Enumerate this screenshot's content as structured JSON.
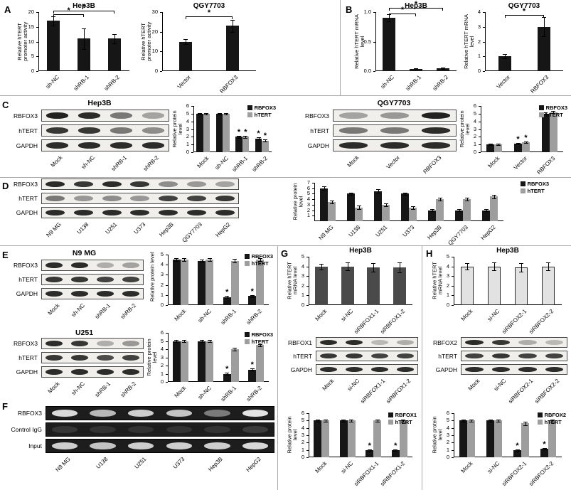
{
  "panels": {
    "A": "A",
    "B": "B",
    "C": "C",
    "D": "D",
    "E": "E",
    "F": "F",
    "G": "G",
    "H": "H"
  },
  "section_titles": {
    "c_left": "Hep3B",
    "c_right": "QGY7703",
    "e_top": "N9 MG",
    "e_bottom": "U251"
  },
  "colors": {
    "bar_dark": "#161616",
    "bar_gray": "#9e9e9e",
    "gel_bg": "#1d1d1d",
    "blot_bg": "#f1efec"
  },
  "chart_data": [
    {
      "id": "a_hep3b",
      "type": "bar",
      "title": "Hep3B",
      "ylabel": "Relative hTERT promoter activity",
      "categories": [
        "sh-NC",
        "shRB-1",
        "shRB-2"
      ],
      "values": [
        17,
        11,
        11
      ],
      "errors": [
        1.5,
        3.5,
        1.5
      ],
      "ylim": [
        0,
        20
      ],
      "yticks": [
        0,
        5,
        10,
        15,
        20
      ],
      "sig": [
        {
          "a": 0,
          "b": 1,
          "y": 19.2,
          "label": "*"
        },
        {
          "a": 0,
          "b": 2,
          "y": 20.6,
          "label": "*"
        }
      ]
    },
    {
      "id": "a_qgy7703",
      "type": "bar",
      "title": "QGY7703",
      "ylabel": "Relative hTERT promoter activity",
      "categories": [
        "Vector",
        "RBFOX3"
      ],
      "values": [
        15,
        23
      ],
      "errors": [
        1.2,
        3
      ],
      "ylim": [
        0,
        30
      ],
      "yticks": [
        0,
        10,
        20,
        30
      ],
      "sig": [
        {
          "a": 0,
          "b": 1,
          "y": 28,
          "label": "*"
        }
      ]
    },
    {
      "id": "b_hep3b",
      "type": "bar",
      "title": "Hep3B",
      "ylabel": "Relative hTERT mRNA level",
      "categories": [
        "sh-NC",
        "shRB-1",
        "shRB-2"
      ],
      "values": [
        0.9,
        0.04,
        0.05
      ],
      "errors": [
        0.06,
        0.01,
        0.01
      ],
      "ylim": [
        0,
        1
      ],
      "yticks": [
        0,
        0.5,
        1
      ],
      "ytick_labels": [
        "0.0",
        "0.5",
        "1.0"
      ],
      "sig": [
        {
          "a": 0,
          "b": 1,
          "y": 0.98,
          "label": "*"
        },
        {
          "a": 0,
          "b": 2,
          "y": 1.07,
          "label": "*"
        }
      ]
    },
    {
      "id": "b_qgy7703",
      "type": "bar",
      "title": "QGY7703",
      "ylabel": "Relative hTERT mRNA level",
      "categories": [
        "Vector",
        "RBFOX3"
      ],
      "values": [
        1,
        3
      ],
      "errors": [
        0.15,
        0.65
      ],
      "ylim": [
        0,
        4
      ],
      "yticks": [
        0,
        1,
        2,
        3,
        4
      ],
      "sig": [
        {
          "a": 0,
          "b": 1,
          "y": 3.8,
          "label": "*"
        }
      ]
    },
    {
      "id": "c_hep3b_protein",
      "type": "bar",
      "ylabel": "Relative protein level",
      "categories": [
        "Mock",
        "sh-NC",
        "shRB-1",
        "shRB-2"
      ],
      "series": [
        {
          "name": "RBFOX3",
          "color": "#161616",
          "values": [
            5,
            5,
            2,
            1.8
          ],
          "errors": [
            0.12,
            0.12,
            0.15,
            0.15
          ]
        },
        {
          "name": "hTERT",
          "color": "#9e9e9e",
          "values": [
            5,
            5,
            2,
            1.5
          ],
          "errors": [
            0.12,
            0.12,
            0.15,
            0.15
          ]
        }
      ],
      "ylim": [
        0,
        6
      ],
      "yticks": [
        0,
        1,
        2,
        3,
        4,
        5,
        6
      ],
      "legend": "tr",
      "stars": [
        {
          "s": 0,
          "c": 2
        },
        {
          "s": 1,
          "c": 2
        },
        {
          "s": 0,
          "c": 3
        },
        {
          "s": 1,
          "c": 3
        }
      ]
    },
    {
      "id": "c_qgy7703_protein",
      "type": "bar",
      "ylabel": "Relative protein level",
      "categories": [
        "Mock",
        "Vector",
        "RBFOX3"
      ],
      "series": [
        {
          "name": "RBFOX3",
          "color": "#161616",
          "values": [
            1,
            1.1,
            5
          ],
          "errors": [
            0.1,
            0.12,
            0.15
          ]
        },
        {
          "name": "hTERT",
          "color": "#9e9e9e",
          "values": [
            1,
            1.3,
            5.2
          ],
          "errors": [
            0.1,
            0.12,
            0.15
          ]
        }
      ],
      "ylim": [
        0,
        6
      ],
      "yticks": [
        0,
        1,
        2,
        3,
        4,
        5,
        6
      ],
      "legend": "tr",
      "stars": [
        {
          "s": 0,
          "c": 1
        },
        {
          "s": 1,
          "c": 1
        }
      ]
    },
    {
      "id": "d_protein",
      "type": "bar",
      "ylabel": "Relative protein level",
      "categories": [
        "N9 MG",
        "U138",
        "U251",
        "U373",
        "Hep3B",
        "QGY7703",
        "HepG2"
      ],
      "series": [
        {
          "name": "RBFOX3",
          "color": "#161616",
          "values": [
            6,
            5,
            5.5,
            5,
            2,
            2,
            2
          ],
          "errors": [
            0.3,
            0.25,
            0.3,
            0.25,
            0.2,
            0.2,
            0.2
          ]
        },
        {
          "name": "hTERT",
          "color": "#9e9e9e",
          "values": [
            3.5,
            2.5,
            3,
            2.5,
            4,
            4,
            4.5
          ],
          "errors": [
            0.3,
            0.3,
            0.3,
            0.25,
            0.3,
            0.3,
            0.3
          ]
        }
      ],
      "ylim": [
        0,
        7
      ],
      "yticks": [
        1,
        2,
        3,
        4,
        5,
        6,
        7
      ],
      "legend": "r"
    },
    {
      "id": "e_n9mg_protein",
      "type": "bar",
      "ylabel": "Relative protein level",
      "categories": [
        "Mock",
        "sh-NC",
        "shRB-1",
        "shRB-2"
      ],
      "series": [
        {
          "name": "RBFOX3",
          "color": "#161616",
          "values": [
            4.5,
            4.4,
            0.8,
            0.9
          ],
          "errors": [
            0.12,
            0.12,
            0.1,
            0.1
          ]
        },
        {
          "name": "hTERT",
          "color": "#9e9e9e",
          "values": [
            4.5,
            4.5,
            4.4,
            4.5
          ],
          "errors": [
            0.12,
            0.12,
            0.15,
            0.12
          ]
        }
      ],
      "ylim": [
        0,
        5
      ],
      "yticks": [
        0,
        1,
        2,
        3,
        4,
        5
      ],
      "legend": "tr",
      "stars": [
        {
          "s": 0,
          "c": 2
        },
        {
          "s": 0,
          "c": 3
        }
      ]
    },
    {
      "id": "e_u251_protein",
      "type": "bar",
      "ylabel": "Relative protein level",
      "categories": [
        "Mock",
        "sh-NC",
        "shRB-1",
        "shRB-2"
      ],
      "series": [
        {
          "name": "RBFOX3",
          "color": "#161616",
          "values": [
            5,
            5,
            1,
            1.5
          ],
          "errors": [
            0.15,
            0.12,
            0.1,
            0.12
          ]
        },
        {
          "name": "hTERT",
          "color": "#9e9e9e",
          "values": [
            5,
            5,
            4,
            4.5
          ],
          "errors": [
            0.12,
            0.12,
            0.2,
            0.15
          ]
        }
      ],
      "ylim": [
        0,
        6
      ],
      "yticks": [
        0,
        1,
        2,
        3,
        4,
        5,
        6
      ],
      "legend": "tr",
      "stars": [
        {
          "s": 0,
          "c": 2
        },
        {
          "s": 0,
          "c": 3
        }
      ]
    },
    {
      "id": "g_mrna",
      "type": "bar",
      "title": "Hep3B",
      "ylabel": "Relative hTERT mRNA level",
      "bar_color": "#4a4a4a",
      "categories": [
        "Mock",
        "si-NC",
        "siRBFOX1-1",
        "siRBFOX1-2"
      ],
      "values": [
        4,
        4,
        3.9,
        3.9
      ],
      "errors": [
        0.3,
        0.4,
        0.45,
        0.5
      ],
      "ylim": [
        0,
        5
      ],
      "yticks": [
        0,
        1,
        2,
        3,
        4,
        5
      ]
    },
    {
      "id": "g_protein",
      "type": "bar",
      "ylabel": "Relative protein level",
      "categories": [
        "Mock",
        "si-NC",
        "siRBFOX1-1",
        "siRBFOX1-2"
      ],
      "series": [
        {
          "name": "RBFOX1",
          "color": "#161616",
          "values": [
            5,
            5,
            1,
            1
          ],
          "errors": [
            0.12,
            0.12,
            0.1,
            0.1
          ]
        },
        {
          "name": "hTERT",
          "color": "#9e9e9e",
          "values": [
            5,
            5,
            5,
            5
          ],
          "errors": [
            0.12,
            0.12,
            0.15,
            0.15
          ]
        }
      ],
      "ylim": [
        0,
        6
      ],
      "yticks": [
        0,
        1,
        2,
        3,
        4,
        5,
        6
      ],
      "legend": "tr",
      "stars": [
        {
          "s": 0,
          "c": 2
        },
        {
          "s": 0,
          "c": 3
        }
      ]
    },
    {
      "id": "h_mrna",
      "type": "bar",
      "title": "Hep3B",
      "ylabel": "Relative hTERT mRNA level",
      "bar_color": "#e2e2e2",
      "bar_border": "#2b2b2b",
      "categories": [
        "Mock",
        "si-NC",
        "siRBFOX2-1",
        "siRBFOX2-2"
      ],
      "values": [
        4,
        4,
        3.9,
        4
      ],
      "errors": [
        0.35,
        0.4,
        0.45,
        0.4
      ],
      "ylim": [
        0,
        5
      ],
      "yticks": [
        0,
        1,
        2,
        3,
        4,
        5
      ]
    },
    {
      "id": "h_protein",
      "type": "bar",
      "ylabel": "Relative protein level",
      "categories": [
        "Mock",
        "si-NC",
        "siRBFOX2-1",
        "siRBFOX2-2"
      ],
      "series": [
        {
          "name": "RBFOX2",
          "color": "#161616",
          "values": [
            5,
            5,
            1,
            1.2
          ],
          "errors": [
            0.12,
            0.12,
            0.1,
            0.1
          ]
        },
        {
          "name": "hTERT",
          "color": "#9e9e9e",
          "values": [
            5,
            5,
            4.6,
            5
          ],
          "errors": [
            0.12,
            0.12,
            0.2,
            0.15
          ]
        }
      ],
      "ylim": [
        0,
        6
      ],
      "yticks": [
        0,
        1,
        2,
        3,
        4,
        5,
        6
      ],
      "legend": "tr",
      "stars": [
        {
          "s": 0,
          "c": 2
        },
        {
          "s": 0,
          "c": 3
        }
      ]
    }
  ],
  "blots": [
    {
      "id": "c_hep3b_blot",
      "lanes": [
        "Mock",
        "sh-NC",
        "shRB-1",
        "shRB-2"
      ],
      "rows": [
        {
          "label": "RBFOX3",
          "bands": [
            0.95,
            0.9,
            0.55,
            0.35
          ]
        },
        {
          "label": "hTERT",
          "bands": [
            0.85,
            0.85,
            0.55,
            0.45
          ]
        },
        {
          "label": "GAPDH",
          "bands": [
            0.9,
            0.9,
            0.9,
            0.9
          ]
        }
      ]
    },
    {
      "id": "c_qgy7703_blot",
      "lanes": [
        "Mock",
        "Vector",
        "RBFOX3"
      ],
      "rows": [
        {
          "label": "RBFOX3",
          "bands": [
            0.35,
            0.4,
            0.95
          ]
        },
        {
          "label": "hTERT",
          "bands": [
            0.55,
            0.55,
            0.9
          ]
        },
        {
          "label": "GAPDH",
          "bands": [
            0.9,
            0.9,
            0.9
          ]
        }
      ]
    },
    {
      "id": "d_blot",
      "strip_h": 16,
      "lanes": [
        "N9 MG",
        "U138",
        "U251",
        "U373",
        "Hep3B",
        "QGY7703",
        "HepG2"
      ],
      "rows": [
        {
          "label": "RBFOX3",
          "bands": [
            0.9,
            0.85,
            0.9,
            0.85,
            0.45,
            0.4,
            0.35
          ]
        },
        {
          "label": "hTERT",
          "bands": [
            0.55,
            0.4,
            0.45,
            0.4,
            0.8,
            0.8,
            0.85
          ]
        },
        {
          "label": "GAPDH",
          "bands": [
            0.9,
            0.9,
            0.9,
            0.9,
            0.9,
            0.9,
            0.9
          ]
        }
      ]
    },
    {
      "id": "e_n9mg_blot",
      "strip_h": 16,
      "lanes": [
        "Mock",
        "sh-NC",
        "shRB-1",
        "shRB-2"
      ],
      "rows": [
        {
          "label": "RBFOX3",
          "bands": [
            0.9,
            0.9,
            0.3,
            0.35
          ]
        },
        {
          "label": "hTERT",
          "bands": [
            0.85,
            0.85,
            0.8,
            0.8
          ]
        },
        {
          "label": "GAPDH",
          "bands": [
            0.9,
            0.9,
            0.9,
            0.9
          ]
        }
      ]
    },
    {
      "id": "e_u251_blot",
      "strip_h": 16,
      "lanes": [
        "Mock",
        "sh-NC",
        "shRB-1",
        "shRB-2"
      ],
      "rows": [
        {
          "label": "RBFOX3",
          "bands": [
            0.9,
            0.85,
            0.3,
            0.4
          ]
        },
        {
          "label": "hTERT",
          "bands": [
            0.85,
            0.85,
            0.75,
            0.8
          ]
        },
        {
          "label": "GAPDH",
          "bands": [
            0.9,
            0.9,
            0.9,
            0.9
          ]
        }
      ]
    },
    {
      "id": "f_gel",
      "dark": true,
      "strip_h": 20,
      "gap": 3,
      "label_w": 58,
      "lanes": [
        "N9 MG",
        "U138",
        "U251",
        "U373",
        "Hep3B",
        "HepG2"
      ],
      "rows": [
        {
          "label": "RBFOX3",
          "bands": [
            0.9,
            0.75,
            0.85,
            0.8,
            0.45,
            0.95
          ]
        },
        {
          "label": "Control IgG",
          "bands": [
            0.12,
            0.1,
            0.1,
            0.1,
            0.1,
            0.15
          ]
        },
        {
          "label": "Input",
          "bands": [
            0.85,
            0.8,
            0.85,
            0.85,
            0.85,
            0.9
          ]
        }
      ]
    },
    {
      "id": "g_blot",
      "strip_h": 15,
      "lanes": [
        "Mock",
        "si-NC",
        "siRBFOX1-1",
        "siRBFOX1-2"
      ],
      "rows": [
        {
          "label": "RBFOX1",
          "bands": [
            0.9,
            0.9,
            0.25,
            0.3
          ]
        },
        {
          "label": "hTERT",
          "bands": [
            0.85,
            0.85,
            0.8,
            0.8
          ]
        },
        {
          "label": "GAPDH",
          "bands": [
            0.9,
            0.9,
            0.9,
            0.9
          ]
        }
      ]
    },
    {
      "id": "h_blot",
      "strip_h": 15,
      "lanes": [
        "Mock",
        "si-NC",
        "siRBFOX2-1",
        "siRBFOX2-2"
      ],
      "rows": [
        {
          "label": "RBFOX2",
          "bands": [
            0.9,
            0.85,
            0.3,
            0.25
          ]
        },
        {
          "label": "hTERT",
          "bands": [
            0.8,
            0.85,
            0.8,
            0.8
          ]
        },
        {
          "label": "GAPDH",
          "bands": [
            0.9,
            0.9,
            0.9,
            0.9
          ]
        }
      ]
    }
  ]
}
